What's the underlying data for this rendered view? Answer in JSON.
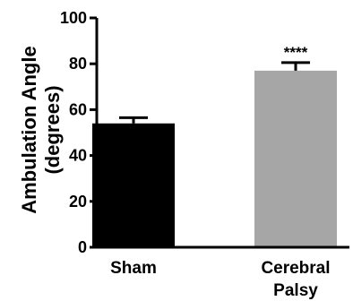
{
  "chart_data": {
    "type": "bar",
    "ylabel_line1": "Ambulation Angle",
    "ylabel_line2": "(degrees)",
    "ylim": [
      0,
      100
    ],
    "yticks": [
      0,
      20,
      40,
      60,
      80,
      100
    ],
    "categories": [
      {
        "lines": [
          "Sham"
        ]
      },
      {
        "lines": [
          "Cerebral",
          "Palsy"
        ]
      }
    ],
    "values": [
      54,
      77
    ],
    "errors": [
      2.5,
      3.5
    ],
    "significance": [
      "",
      "****"
    ],
    "bar_colors": [
      "#000000",
      "#a6a6a6"
    ],
    "grid": false,
    "legend": false
  }
}
